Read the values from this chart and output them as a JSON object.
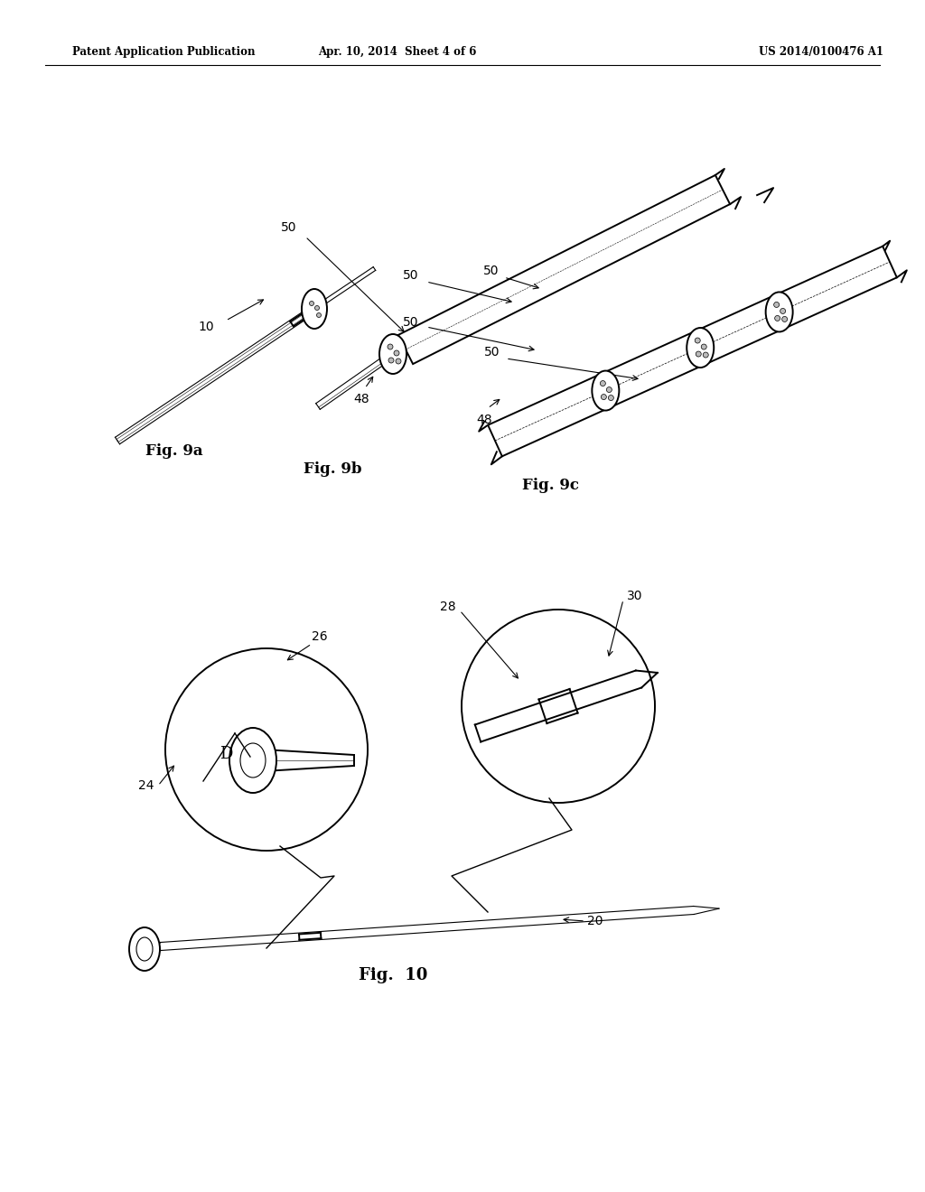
{
  "bg_color": "#ffffff",
  "text_color": "#000000",
  "header_left": "Patent Application Publication",
  "header_center": "Apr. 10, 2014  Sheet 4 of 6",
  "header_right": "US 2014/0100476 A1",
  "fig9a_label": "Fig. 9a",
  "fig9b_label": "Fig. 9b",
  "fig9c_label": "Fig. 9c",
  "fig10_label": "Fig.  10",
  "line_color": "#000000",
  "lw_main": 1.4,
  "lw_thin": 0.8,
  "lw_handle": 2.0
}
